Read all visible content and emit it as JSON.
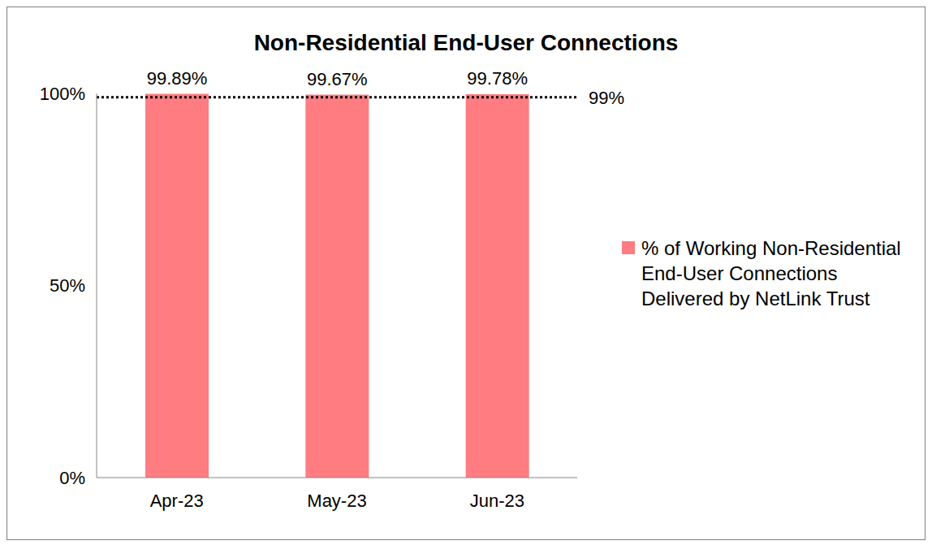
{
  "chart_data": {
    "type": "bar",
    "title": "Non-Residential End-User Connections",
    "categories": [
      "Apr-23",
      "May-23",
      "Jun-23"
    ],
    "series": [
      {
        "name": "% of Working Non-Residential End-User Connections Delivered by NetLink Trust",
        "color": "#ff7c80",
        "values": [
          99.89,
          99.67,
          99.78
        ],
        "value_labels": [
          "99.89%",
          "99.67%",
          "99.78%"
        ]
      }
    ],
    "ylim": [
      0,
      100
    ],
    "yticks": [
      {
        "value": 0,
        "label": "0%"
      },
      {
        "value": 50,
        "label": "50%"
      },
      {
        "value": 100,
        "label": "100%"
      }
    ],
    "annotations": [
      {
        "y": 99,
        "label": "99%",
        "line_style": "dotted"
      }
    ],
    "data_labels": true,
    "legend": "right",
    "grid": false
  }
}
